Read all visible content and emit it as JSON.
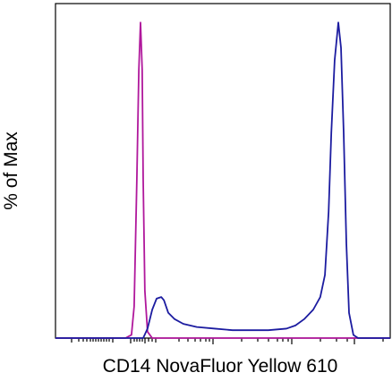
{
  "chart_data": {
    "type": "line",
    "x_label": "CD14 NovaFluor Yellow 610",
    "y_label": "% of Max",
    "xlim": [
      0,
      100
    ],
    "ylim": [
      0,
      106
    ],
    "series": [
      {
        "color": "#b0189c",
        "x": [
          0,
          20.9,
          22.7,
          23.5,
          24.3,
          24.9,
          25.4,
          25.9,
          26.2,
          26.7,
          27.5,
          28.9,
          100
        ],
        "values": [
          0,
          0,
          1,
          10,
          50,
          85,
          100,
          85,
          50,
          15,
          2,
          0,
          0
        ]
      },
      {
        "color": "#1c1ca0",
        "x": [
          0,
          26.2,
          27.5,
          28.9,
          30.2,
          31.6,
          32.4,
          33.7,
          35.6,
          38.2,
          42.2,
          47.6,
          52.9,
          58.3,
          63.6,
          69,
          71.7,
          74.3,
          77,
          79.1,
          80.5,
          81.6,
          82.4,
          83.4,
          84.5,
          85.3,
          86.1,
          86.9,
          87.7,
          89,
          90.4,
          100
        ],
        "values": [
          0,
          0,
          3,
          9,
          12.5,
          13,
          12,
          8,
          6,
          4.5,
          3.5,
          3,
          2.5,
          2.5,
          2.5,
          3,
          4,
          6,
          9,
          13,
          20,
          40,
          65,
          88,
          100,
          92,
          65,
          30,
          8,
          1,
          0,
          0
        ]
      }
    ]
  }
}
